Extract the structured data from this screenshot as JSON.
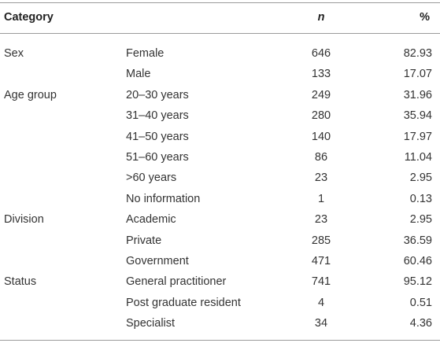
{
  "table": {
    "header": {
      "category": "Category",
      "n": "n",
      "percent": "%"
    },
    "rows": [
      {
        "group": "Sex",
        "label": "Female",
        "n": "646",
        "percent": "82.93"
      },
      {
        "label": "Male",
        "n": "133",
        "percent": "17.07"
      },
      {
        "group": "Age group",
        "label": "20–30 years",
        "n": "249",
        "percent": "31.96"
      },
      {
        "label": "31–40 years",
        "n": "280",
        "percent": "35.94"
      },
      {
        "label": "41–50 years",
        "n": "140",
        "percent": "17.97"
      },
      {
        "label": "51–60 years",
        "n": "86",
        "percent": "11.04"
      },
      {
        "label": ">60 years",
        "n": "23",
        "percent": "2.95"
      },
      {
        "label": "No information",
        "n": "1",
        "percent": "0.13"
      },
      {
        "group": "Division",
        "label": "Academic",
        "n": "23",
        "percent": "2.95"
      },
      {
        "label": "Private",
        "n": "285",
        "percent": "36.59"
      },
      {
        "label": "Government",
        "n": "471",
        "percent": "60.46"
      },
      {
        "group": "Status",
        "label": "General practitioner",
        "n": "741",
        "percent": "95.12"
      },
      {
        "label": "Post graduate resident",
        "n": "4",
        "percent": "0.51"
      },
      {
        "label": "Specialist",
        "n": "34",
        "percent": "4.36"
      }
    ]
  }
}
